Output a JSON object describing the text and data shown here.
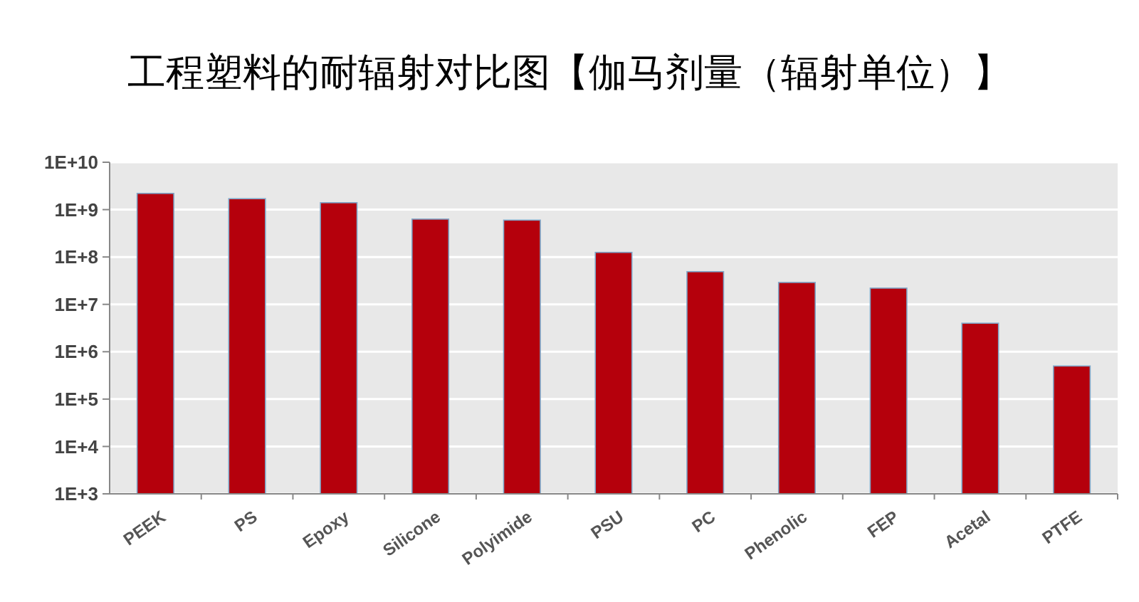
{
  "chart_data": {
    "type": "bar",
    "title": "工程塑料的耐辐射对比图【伽马剂量（辐射单位）】",
    "categories": [
      "PEEK",
      "PS",
      "Epoxy",
      "Silicone",
      "Polyimide",
      "PSU",
      "PC",
      "Phenolic",
      "FEP",
      "Acetal",
      "PTFE"
    ],
    "values": [
      2200000000,
      1700000000,
      1400000000,
      630000000,
      600000000,
      125000000,
      49000000,
      29000000,
      22000000,
      4000000,
      500000
    ],
    "color": "#b5000c",
    "log": true,
    "ylim": [
      1000,
      10000000000
    ],
    "yticks": [
      {
        "value": 1000,
        "label": "1E+3"
      },
      {
        "value": 10000,
        "label": "1E+4"
      },
      {
        "value": 100000,
        "label": "1E+5"
      },
      {
        "value": 1000000,
        "label": "1E+6"
      },
      {
        "value": 10000000,
        "label": "1E+7"
      },
      {
        "value": 100000000,
        "label": "1E+8"
      },
      {
        "value": 1000000000,
        "label": "1E+9"
      },
      {
        "value": 10000000000,
        "label": "1E+10"
      }
    ],
    "grid": "y"
  }
}
